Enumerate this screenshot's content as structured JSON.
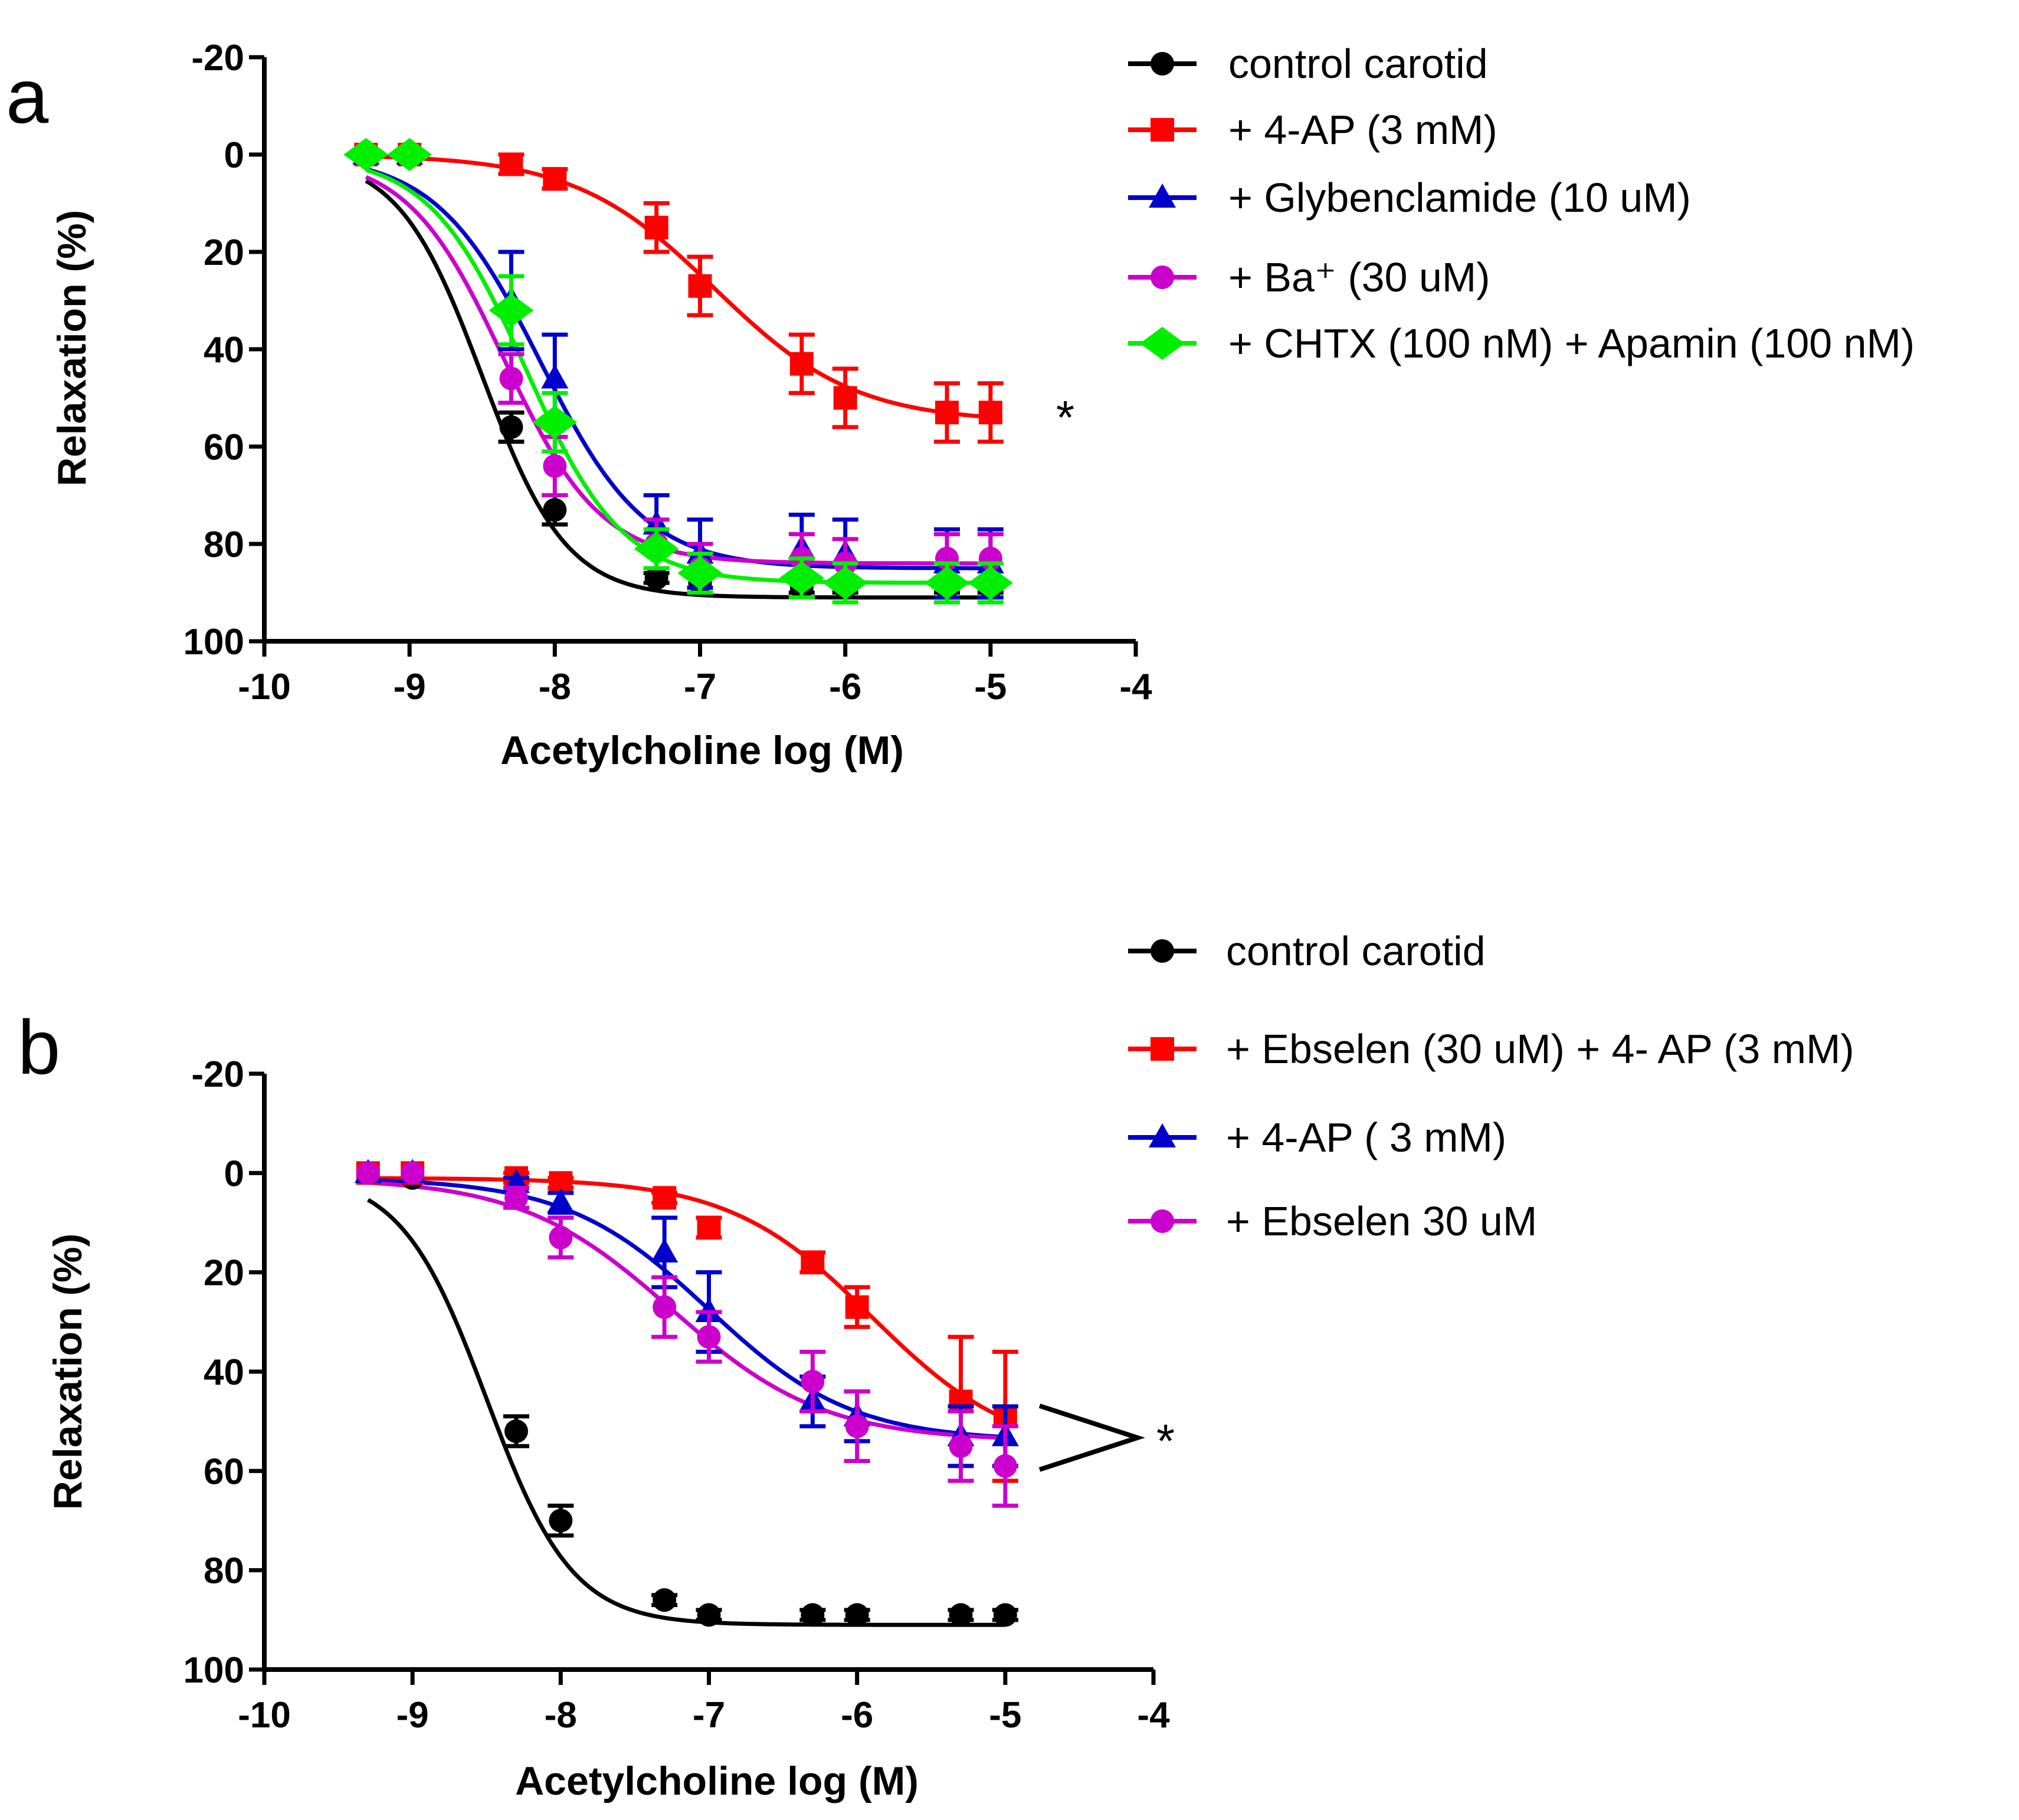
{
  "figure": {
    "background": "#ffffff"
  },
  "chart_data": [
    {
      "panel": "a",
      "type": "line",
      "xlabel": "Acetylcholine log (M)",
      "ylabel": "Relaxation (%)",
      "xlim": [
        -10,
        -4
      ],
      "ylim": [
        -20,
        100
      ],
      "y_inverted": true,
      "xticks": [
        -10,
        -9,
        -8,
        -7,
        -6,
        -5,
        -4
      ],
      "yticks": [
        -20,
        0,
        20,
        40,
        60,
        80,
        100
      ],
      "x": [
        -9.3,
        -9.0,
        -8.3,
        -8.0,
        -7.3,
        -7.0,
        -6.3,
        -6.0,
        -5.3,
        -5.0
      ],
      "legend_position": "top-right",
      "significance": "*",
      "series": [
        {
          "name": "control carotid",
          "marker": "circle",
          "color": "#000000",
          "values": [
            0,
            0,
            56,
            73,
            87,
            88,
            89,
            89,
            89,
            89
          ],
          "errors": [
            0,
            0,
            3,
            3,
            1,
            1,
            1,
            1,
            1,
            1
          ],
          "fit": {
            "top": 0,
            "bottom": 91,
            "logec50": -8.5,
            "hill": 1.5
          }
        },
        {
          "name": "+ 4-AP (3 mM)",
          "marker": "square",
          "color": "#ff0000",
          "values": [
            0,
            0,
            2,
            5,
            15,
            27,
            43,
            50,
            53,
            53
          ],
          "errors": [
            0,
            0,
            2,
            2,
            5,
            6,
            6,
            6,
            6,
            6
          ],
          "fit": {
            "top": 0,
            "bottom": 55,
            "logec50": -6.9,
            "hill": 0.9
          }
        },
        {
          "name": "+ Glybenclamide (10 uM)",
          "marker": "triangle",
          "color": "#0000cc",
          "values": [
            0,
            0,
            30,
            46,
            76,
            82,
            81,
            82,
            84,
            84
          ],
          "errors": [
            0,
            0,
            10,
            9,
            6,
            7,
            7,
            7,
            7,
            7
          ],
          "fit": {
            "top": 0,
            "bottom": 85,
            "logec50": -8.1,
            "hill": 1.2
          }
        },
        {
          "name": "+ Ba⁺ (30 uM)",
          "marker": "circle",
          "color": "#cc00cc",
          "values": [
            0,
            0,
            46,
            64,
            80,
            85,
            83,
            84,
            83,
            83
          ],
          "errors": [
            0,
            0,
            5,
            6,
            5,
            5,
            5,
            5,
            5,
            5
          ],
          "fit": {
            "top": 0,
            "bottom": 84,
            "logec50": -8.35,
            "hill": 1.3
          }
        },
        {
          "name": "+ CHTX (100 nM) + Apamin (100 nM)",
          "marker": "diamond",
          "color": "#00ee00",
          "values": [
            0,
            0,
            32,
            55,
            81,
            86,
            87,
            88,
            88,
            88
          ],
          "errors": [
            0,
            0,
            7,
            6,
            4,
            4,
            4,
            4,
            4,
            4
          ],
          "fit": {
            "top": 0,
            "bottom": 88,
            "logec50": -8.2,
            "hill": 1.3
          }
        }
      ]
    },
    {
      "panel": "b",
      "type": "line",
      "xlabel": "Acetylcholine log (M)",
      "ylabel": "Relaxation (%)",
      "xlim": [
        -10,
        -4
      ],
      "ylim": [
        -20,
        100
      ],
      "y_inverted": true,
      "xticks": [
        -10,
        -9,
        -8,
        -7,
        -6,
        -5,
        -4
      ],
      "yticks": [
        -20,
        0,
        20,
        40,
        60,
        80,
        100
      ],
      "x": [
        -9.3,
        -9.0,
        -8.3,
        -8.0,
        -7.3,
        -7.0,
        -6.3,
        -6.0,
        -5.3,
        -5.0
      ],
      "legend_position": "top-right",
      "significance": "*",
      "series": [
        {
          "name": "control carotid",
          "marker": "circle",
          "color": "#000000",
          "values": [
            0,
            1,
            52,
            70,
            86,
            89,
            89,
            89,
            89,
            89
          ],
          "errors": [
            0,
            0,
            3,
            3,
            1,
            1,
            1,
            1,
            1,
            1
          ],
          "fit": {
            "top": 0,
            "bottom": 91,
            "logec50": -8.5,
            "hill": 1.5
          }
        },
        {
          "name": "+ Ebselen (30 uM) + 4- AP (3 mM)",
          "marker": "square",
          "color": "#ff0000",
          "values": [
            0,
            0,
            1,
            2,
            5,
            11,
            18,
            27,
            46,
            49
          ],
          "errors": [
            0,
            0,
            1,
            1,
            1,
            2,
            2,
            4,
            13,
            13
          ],
          "fit": {
            "top": 1,
            "bottom": 57,
            "logec50": -5.9,
            "hill": 0.9
          }
        },
        {
          "name": "+ 4-AP ( 3 mM)",
          "marker": "triangle",
          "color": "#0000cc",
          "values": [
            0,
            0,
            2,
            6,
            16,
            28,
            46,
            49,
            53,
            53
          ],
          "errors": [
            0,
            0,
            1,
            2,
            7,
            8,
            5,
            5,
            6,
            6
          ],
          "fit": {
            "top": 1,
            "bottom": 54,
            "logec50": -7.0,
            "hill": 0.9
          }
        },
        {
          "name": "+ Ebselen 30 uM",
          "marker": "circle",
          "color": "#cc00cc",
          "values": [
            0,
            0,
            5,
            13,
            27,
            33,
            42,
            51,
            55,
            59
          ],
          "errors": [
            0,
            0,
            2,
            4,
            6,
            5,
            6,
            7,
            7,
            8
          ],
          "fit": {
            "top": 1,
            "bottom": 54,
            "logec50": -7.25,
            "hill": 0.85
          }
        }
      ]
    }
  ]
}
